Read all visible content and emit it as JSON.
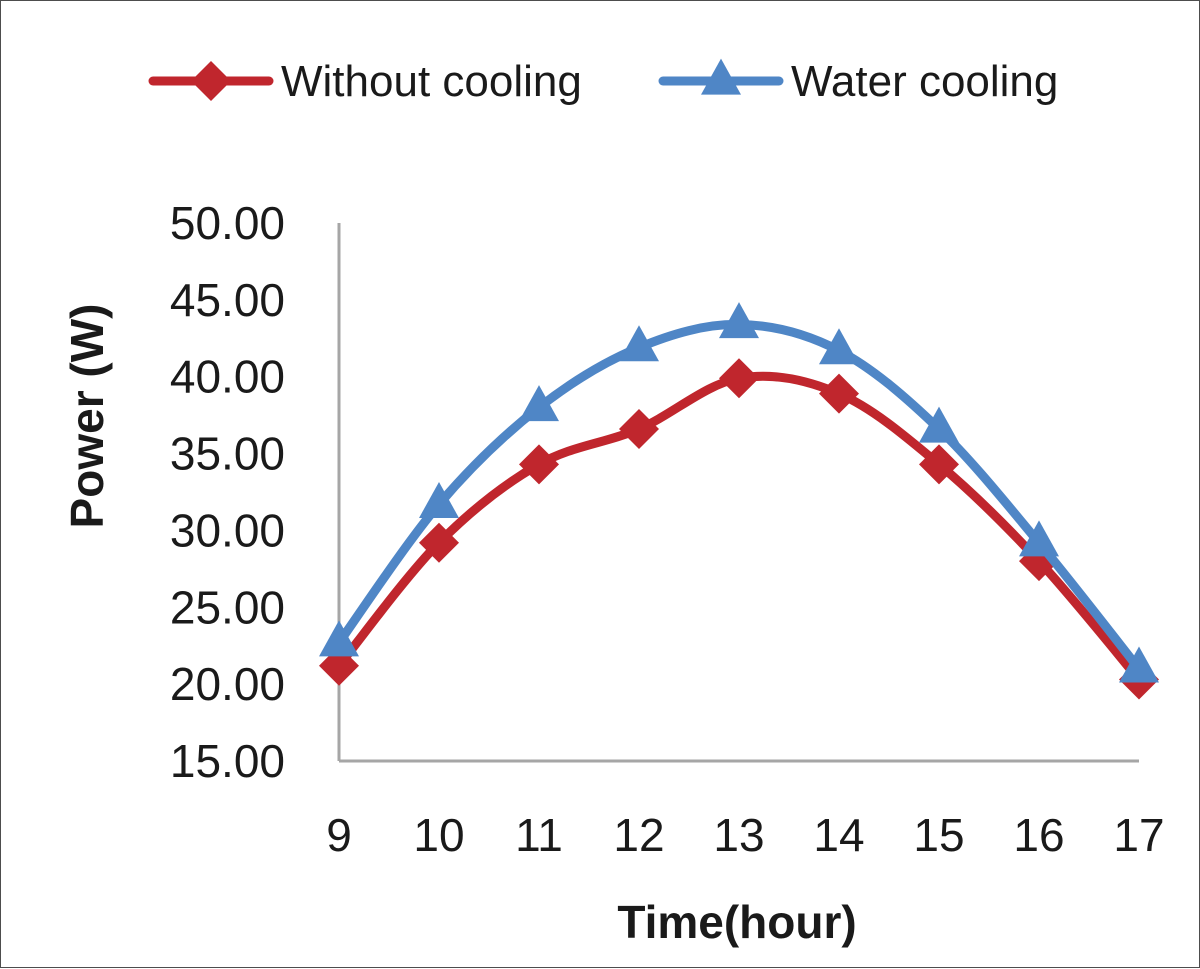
{
  "chart_data": {
    "type": "line",
    "title": "",
    "xlabel": "Time(hour)",
    "ylabel": "Power (W)",
    "x": [
      "9",
      "10",
      "11",
      "12",
      "13",
      "14",
      "15",
      "16",
      "17"
    ],
    "ylim": [
      15,
      50
    ],
    "yticks": [
      "15.00",
      "20.00",
      "25.00",
      "30.00",
      "35.00",
      "40.00",
      "45.00",
      "50.00"
    ],
    "grid": false,
    "legend_position": "top",
    "smooth": true,
    "series": [
      {
        "name": "Without cooling",
        "color": "#c0262d",
        "marker": "diamond",
        "values": [
          21.2,
          29.2,
          34.3,
          36.6,
          39.9,
          38.9,
          34.3,
          28.0,
          20.3
        ]
      },
      {
        "name": "Water cooling",
        "color": "#4f86c6",
        "marker": "triangle",
        "values": [
          22.7,
          31.7,
          38.0,
          41.9,
          43.4,
          41.7,
          36.6,
          29.2,
          21.0
        ]
      }
    ]
  }
}
